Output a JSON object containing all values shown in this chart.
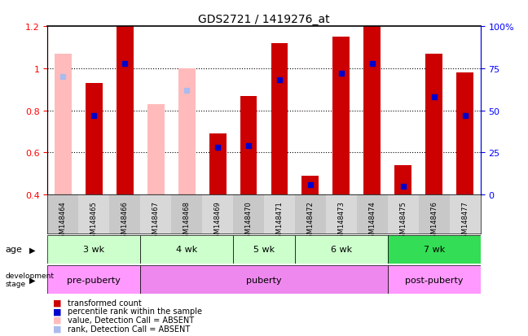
{
  "title": "GDS2721 / 1419276_at",
  "samples": [
    "GSM148464",
    "GSM148465",
    "GSM148466",
    "GSM148467",
    "GSM148468",
    "GSM148469",
    "GSM148470",
    "GSM148471",
    "GSM148472",
    "GSM148473",
    "GSM148474",
    "GSM148475",
    "GSM148476",
    "GSM148477"
  ],
  "transformed_count": [
    1.07,
    0.93,
    1.2,
    0.83,
    1.0,
    0.69,
    0.87,
    1.12,
    0.49,
    1.15,
    1.2,
    0.54,
    1.07,
    0.98
  ],
  "percentile_rank_pct": [
    70,
    47,
    78,
    null,
    62,
    28,
    29,
    68,
    6,
    72,
    78,
    5,
    58,
    47
  ],
  "absent": [
    true,
    false,
    false,
    true,
    true,
    false,
    false,
    false,
    false,
    false,
    false,
    false,
    false,
    false
  ],
  "age_groups": [
    {
      "label": "3 wk",
      "start": 0,
      "end": 3
    },
    {
      "label": "4 wk",
      "start": 3,
      "end": 6
    },
    {
      "label": "5 wk",
      "start": 6,
      "end": 8
    },
    {
      "label": "6 wk",
      "start": 8,
      "end": 11
    },
    {
      "label": "7 wk",
      "start": 11,
      "end": 14
    }
  ],
  "dev_groups": [
    {
      "label": "pre-puberty",
      "start": 0,
      "end": 3
    },
    {
      "label": "puberty",
      "start": 3,
      "end": 11
    },
    {
      "label": "post-puberty",
      "start": 11,
      "end": 14
    }
  ],
  "age_colors": [
    "#ccffcc",
    "#ccffcc",
    "#ccffcc",
    "#ccffcc",
    "#33dd55"
  ],
  "dev_colors_list": [
    "#ff99ff",
    "#ee88ee",
    "#ff99ff"
  ],
  "ylim": [
    0.4,
    1.2
  ],
  "y2lim": [
    0,
    100
  ],
  "yticks": [
    0.4,
    0.6,
    0.8,
    1.0,
    1.2
  ],
  "y2ticks": [
    0,
    25,
    50,
    75,
    100
  ],
  "bar_color_present": "#cc0000",
  "bar_color_absent": "#ffbbbb",
  "rank_color_present": "#0000cc",
  "rank_color_absent": "#aabbee",
  "bar_width": 0.55
}
